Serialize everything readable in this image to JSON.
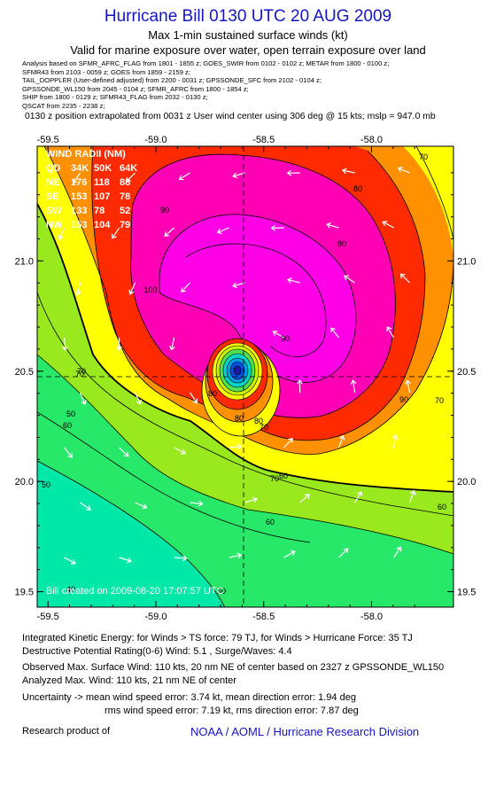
{
  "header": {
    "title": "Hurricane Bill 0130 UTC 20 AUG 2009",
    "subtitle1": "Max 1-min sustained surface winds (kt)",
    "subtitle2": "Valid for marine exposure over water, open terrain exposure over land",
    "sources": [
      "Analysis based on  SFMR_AFRC_FLAG from 1801 - 1855 z;  GOES_SWIR from 0102 - 0102 z;  METAR from 1800 - 0100 z;",
      "SFMR43 from 2103 - 0059 z;  GOES from 1859 - 2159 z;",
      "TAIL_DOPPLER (User-defined adjusted) from 2200 - 0031 z;  GPSSONDE_SFC from 2102 - 0104 z;",
      "GPSSONDE_WL150 from 2045 - 0104 z;  SFMR_AFRC from 1800 - 1854 z;",
      "SHIP from 1800 - 0129 z;  SFMR43_FLAG from 2032 - 0130 z;",
      "QSCAT from 2235 - 2238 z;"
    ],
    "position_note": "0130 z position extrapolated from 0031 z User wind center using 306 deg @ 15 kts; mslp = 947.0 mb"
  },
  "chart_data": {
    "type": "heatmap",
    "x_ticks": [
      "-59.5",
      "-59.0",
      "-58.5",
      "-58.0"
    ],
    "y_ticks": [
      "19.5",
      "20.0",
      "20.5",
      "21.0"
    ],
    "xlim": [
      -59.55,
      -57.62
    ],
    "ylim": [
      19.43,
      21.52
    ],
    "center": {
      "lon": -58.53,
      "lat": 20.43
    },
    "wind_radii": {
      "header": "WIND RADII (NM)",
      "rows": [
        [
          "QD",
          "34K",
          "50K",
          "64K"
        ],
        [
          "NE",
          "176",
          "118",
          "88"
        ],
        [
          "SE",
          "153",
          "107",
          "78"
        ],
        [
          "SW",
          "133",
          "78",
          "52"
        ],
        [
          "NW",
          "153",
          "104",
          "79"
        ]
      ]
    },
    "contour_labels": [
      "70",
      "80",
      "90",
      "80",
      "100",
      "90",
      "90",
      "80",
      "70",
      "60",
      "80",
      "70",
      "70",
      "60",
      "50",
      "60",
      "50",
      "70",
      "60",
      "50",
      "40",
      "80",
      "70"
    ],
    "credit": "Bill    created on  2009-08-20 17:07:57 UTC",
    "colors": {
      "40": "#00e8a8",
      "50": "#28e86a",
      "60": "#9ae81e",
      "70": "#ffff00",
      "80": "#ff9000",
      "90": "#ff2a00",
      "100": "#ff00b4",
      "110": "#ff00e6"
    }
  },
  "stats": {
    "ike": "Integrated Kinetic Energy:  for Winds > TS force: 79 TJ,  for Winds > Hurricane Force: 35 TJ",
    "dpr": "Destructive Potential Rating(0-6)   Wind: 5.1 , Surge/Waves: 4.4",
    "obs_max": "Observed Max. Surface Wind: 110 kts, 20 nm NE of center based on 2327 z GPSSONDE_WL150",
    "an_max": "Analyzed Max. Wind: 110 kts, 21 nm NE of center",
    "unc1": "Uncertainty -> mean wind speed error: 3.74 kt,   mean direction error: 1.94 deg",
    "unc2": "rms wind speed error: 7.19 kt,   rms direction error: 7.87 deg",
    "research": "Research product of",
    "org": "NOAA / AOML / Hurricane Research Division"
  }
}
